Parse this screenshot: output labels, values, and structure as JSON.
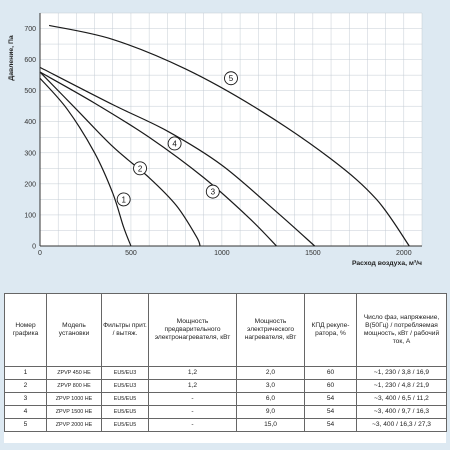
{
  "chart_data": {
    "type": "line",
    "xlabel": "Расход воздуха, м³/ч",
    "ylabel": "Давление, Па",
    "xlim": [
      0,
      2100
    ],
    "ylim": [
      0,
      750
    ],
    "xticks": [
      "0",
      "500",
      "1000",
      "1500",
      "2000"
    ],
    "yticks": [
      "0",
      "100",
      "200",
      "300",
      "400",
      "500",
      "600",
      "700"
    ],
    "grid": true,
    "series": [
      {
        "name": "1",
        "x": [
          0,
          150,
          300,
          400,
          460,
          500
        ],
        "y": [
          540,
          440,
          300,
          170,
          60,
          0
        ]
      },
      {
        "name": "2",
        "x": [
          0,
          200,
          400,
          600,
          750,
          860,
          880
        ],
        "y": [
          560,
          440,
          320,
          220,
          130,
          30,
          0
        ]
      },
      {
        "name": "3",
        "x": [
          0,
          300,
          600,
          900,
          1150,
          1300
        ],
        "y": [
          560,
          460,
          350,
          220,
          90,
          0
        ]
      },
      {
        "name": "4",
        "x": [
          0,
          400,
          700,
          1000,
          1300,
          1510
        ],
        "y": [
          575,
          455,
          370,
          260,
          110,
          0
        ]
      },
      {
        "name": "5",
        "x": [
          50,
          400,
          800,
          1200,
          1600,
          1850,
          2030
        ],
        "y": [
          710,
          665,
          570,
          440,
          280,
          150,
          0
        ]
      }
    ]
  },
  "table": {
    "headers": [
      "Номер графика",
      "Модель установки",
      "Фильтры прит. / вытяж.",
      "Мощность предварительного электронагревателя, кВт",
      "Мощность электрического нагревателя, кВт",
      "КПД рекупе-ратора, %",
      "Число фаз, напряжение, В(50Гц) / потребляемая мощность, кВт / рабочий ток, А"
    ],
    "rows": [
      [
        "1",
        "ZPVP 450 HE",
        "EU5/EU3",
        "1,2",
        "2,0",
        "60",
        "~1, 230 / 3,8 / 16,9"
      ],
      [
        "2",
        "ZPVP 800 HE",
        "EU5/EU3",
        "1,2",
        "3,0",
        "60",
        "~1, 230 / 4,8 / 21,9"
      ],
      [
        "3",
        "ZPVP 1000 HE",
        "EU5/EU5",
        "-",
        "6,0",
        "54",
        "~3, 400 / 6,5 / 11,2"
      ],
      [
        "4",
        "ZPVP 1500 HE",
        "EU5/EU5",
        "-",
        "9,0",
        "54",
        "~3, 400 / 9,7 / 16,3"
      ],
      [
        "5",
        "ZPVP 2000 HE",
        "EU5/EU5",
        "-",
        "15,0",
        "54",
        "~3, 400 / 16,3 / 27,3"
      ]
    ]
  }
}
